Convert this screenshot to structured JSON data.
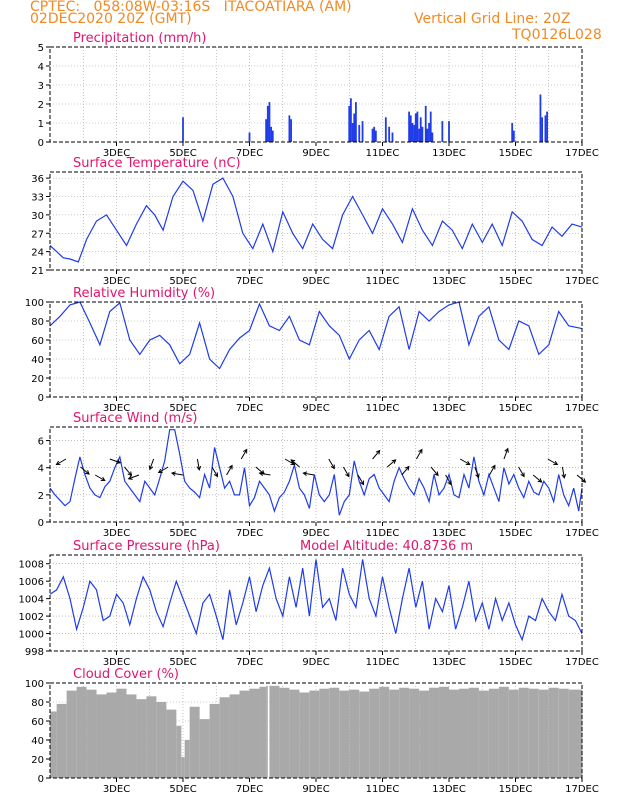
{
  "header": {
    "line1": "CPTEC:   058:08W-03:16S   ITACOATIARA (AM)",
    "line2": "02DEC2020 20Z (GMT)",
    "grid_note": "Vertical Grid Line: 20Z",
    "code": "TQ0126L028"
  },
  "x_ticks": [
    "3DEC",
    "5DEC",
    "7DEC",
    "9DEC",
    "11DEC",
    "13DEC",
    "15DEC",
    "17DEC"
  ],
  "colors": {
    "line": "#1f3ce8",
    "title": "#e0156e",
    "header": "#f08a24",
    "cloud": "#a9a9a9"
  },
  "chart_data": [
    {
      "type": "bar",
      "title": "Precipitation (mm/h)",
      "ylim": [
        0,
        5
      ],
      "yticks": [
        0,
        1,
        2,
        3,
        4,
        5
      ],
      "x": [
        5.0,
        7.0,
        7.5,
        7.55,
        7.6,
        7.65,
        7.7,
        8.2,
        8.25,
        10.0,
        10.05,
        10.1,
        10.15,
        10.2,
        10.3,
        10.4,
        10.7,
        10.75,
        10.8,
        11.1,
        11.2,
        11.3,
        11.8,
        11.85,
        11.9,
        11.95,
        12.0,
        12.05,
        12.1,
        12.15,
        12.2,
        12.3,
        12.35,
        12.4,
        12.45,
        12.5,
        12.8,
        13.0,
        14.9,
        14.95,
        15.75,
        15.8,
        15.9,
        15.95
      ],
      "values": [
        1.3,
        0.5,
        1.2,
        1.9,
        2.1,
        0.8,
        0.6,
        1.4,
        1.2,
        1.9,
        2.3,
        1.0,
        1.5,
        2.1,
        0.9,
        1.1,
        0.7,
        0.8,
        0.6,
        1.3,
        0.8,
        0.5,
        1.6,
        1.4,
        1.0,
        0.9,
        1.5,
        1.6,
        0.7,
        1.3,
        0.8,
        1.9,
        0.7,
        1.0,
        1.6,
        0.5,
        1.1,
        1.1,
        1.0,
        0.6,
        2.5,
        1.3,
        1.4,
        1.6
      ]
    },
    {
      "type": "line",
      "title": "Surface Temperature (nC)",
      "ylim": [
        21,
        37
      ],
      "yticks": [
        21,
        24,
        27,
        30,
        33,
        36
      ],
      "x": [
        1.0,
        1.2,
        1.4,
        1.6,
        1.85,
        2.1,
        2.4,
        2.7,
        3.0,
        3.3,
        3.6,
        3.9,
        4.15,
        4.4,
        4.7,
        5.0,
        5.3,
        5.6,
        5.9,
        6.2,
        6.5,
        6.8,
        7.1,
        7.4,
        7.7,
        8.0,
        8.3,
        8.6,
        8.9,
        9.2,
        9.5,
        9.8,
        10.1,
        10.4,
        10.7,
        11.0,
        11.3,
        11.6,
        11.9,
        12.2,
        12.5,
        12.8,
        13.1,
        13.4,
        13.7,
        14.0,
        14.3,
        14.6,
        14.9,
        15.2,
        15.5,
        15.8,
        16.1,
        16.4,
        16.7,
        17.0
      ],
      "values": [
        25,
        24,
        23,
        22.8,
        22.3,
        26,
        29,
        30,
        27.5,
        25,
        28.5,
        31.5,
        30,
        27.5,
        33,
        35.5,
        34,
        29,
        35,
        36,
        33,
        27,
        24.5,
        28.5,
        24,
        30.5,
        27,
        24.5,
        28.5,
        26,
        24.5,
        30,
        33,
        30,
        27,
        31,
        28.5,
        25.5,
        31,
        27.5,
        25,
        29,
        27.5,
        24.5,
        28.5,
        25.5,
        28.5,
        25,
        30.5,
        29,
        26,
        25,
        28,
        26.5,
        28.5,
        28
      ]
    },
    {
      "type": "line",
      "title": "Relative Humidity (%)",
      "ylim": [
        0,
        100
      ],
      "yticks": [
        0,
        20,
        40,
        60,
        80,
        100
      ],
      "x": [
        1.0,
        1.3,
        1.6,
        1.9,
        2.2,
        2.5,
        2.8,
        3.1,
        3.4,
        3.7,
        4.0,
        4.3,
        4.6,
        4.9,
        5.2,
        5.5,
        5.8,
        6.1,
        6.4,
        6.7,
        7.0,
        7.3,
        7.6,
        7.9,
        8.2,
        8.5,
        8.8,
        9.1,
        9.4,
        9.7,
        10.0,
        10.3,
        10.6,
        10.9,
        11.2,
        11.5,
        11.8,
        12.1,
        12.4,
        12.7,
        13.0,
        13.3,
        13.6,
        13.9,
        14.2,
        14.5,
        14.8,
        15.1,
        15.4,
        15.7,
        16.0,
        16.3,
        16.6,
        17.0
      ],
      "values": [
        75,
        85,
        97,
        100,
        78,
        55,
        90,
        99,
        60,
        45,
        60,
        65,
        55,
        35,
        45,
        78,
        40,
        30,
        50,
        62,
        70,
        98,
        75,
        70,
        85,
        60,
        55,
        90,
        75,
        65,
        40,
        60,
        70,
        50,
        85,
        95,
        50,
        90,
        80,
        90,
        97,
        100,
        55,
        85,
        95,
        60,
        50,
        80,
        75,
        45,
        55,
        90,
        75,
        72
      ]
    },
    {
      "type": "line",
      "title": "Surface Wind (m/s)",
      "ylim": [
        0,
        7
      ],
      "yticks": [
        0,
        2,
        4,
        6
      ],
      "x": [
        1.0,
        1.15,
        1.3,
        1.45,
        1.6,
        1.75,
        1.9,
        2.05,
        2.2,
        2.35,
        2.5,
        2.65,
        2.8,
        2.95,
        3.1,
        3.25,
        3.4,
        3.55,
        3.7,
        3.85,
        4.0,
        4.15,
        4.3,
        4.45,
        4.6,
        4.75,
        4.9,
        5.05,
        5.2,
        5.35,
        5.5,
        5.65,
        5.8,
        5.95,
        6.1,
        6.25,
        6.4,
        6.55,
        6.7,
        6.85,
        7.0,
        7.15,
        7.3,
        7.45,
        7.6,
        7.75,
        7.9,
        8.05,
        8.2,
        8.35,
        8.5,
        8.65,
        8.8,
        8.95,
        9.1,
        9.25,
        9.4,
        9.55,
        9.7,
        9.85,
        10.0,
        10.15,
        10.3,
        10.45,
        10.6,
        10.75,
        10.9,
        11.05,
        11.2,
        11.35,
        11.5,
        11.65,
        11.8,
        11.95,
        12.1,
        12.25,
        12.4,
        12.55,
        12.7,
        12.85,
        13.0,
        13.15,
        13.3,
        13.45,
        13.6,
        13.75,
        13.9,
        14.05,
        14.2,
        14.35,
        14.5,
        14.65,
        14.8,
        14.95,
        15.1,
        15.25,
        15.4,
        15.55,
        15.7,
        15.85,
        16.0,
        16.15,
        16.3,
        16.45,
        16.6,
        16.75,
        16.9,
        17.0
      ],
      "values": [
        2.5,
        2,
        1.6,
        1.2,
        1.5,
        3.2,
        4.8,
        3.5,
        2.5,
        2.0,
        1.8,
        2.6,
        3.0,
        4.0,
        4.8,
        3.0,
        2.5,
        2.0,
        1.5,
        3.0,
        2.5,
        2.0,
        3.2,
        4.5,
        6.8,
        6.8,
        5.0,
        3.0,
        2.5,
        2.2,
        1.8,
        3.5,
        2.5,
        5.5,
        4.0,
        2.5,
        3.0,
        2.0,
        2.0,
        4.0,
        1.2,
        1.8,
        3.0,
        2.5,
        2.0,
        0.8,
        1.8,
        2.2,
        3.0,
        4.2,
        2.5,
        2.0,
        1.0,
        3.5,
        2.0,
        1.5,
        2.0,
        3.5,
        0.5,
        1.5,
        2.0,
        4.5,
        3.0,
        2.0,
        3.2,
        3.5,
        2.5,
        2.0,
        1.5,
        3.0,
        4.0,
        3.2,
        2.5,
        2.0,
        3.2,
        2.5,
        1.5,
        3.5,
        2.0,
        2.5,
        3.5,
        2.0,
        1.8,
        3.5,
        2.5,
        4.8,
        3.0,
        2.0,
        3.5,
        2.5,
        1.5,
        4.0,
        2.8,
        3.5,
        2.5,
        1.8,
        3.0,
        2.2,
        2.0,
        3.0,
        2.5,
        1.5,
        3.5,
        2.0,
        1.2,
        2.5,
        0.8,
        2.5
      ]
    },
    {
      "type": "line",
      "title": "Surface Pressure (hPa)",
      "annotation": "Model Altitude: 40.8736 m",
      "ylim": [
        998,
        1009
      ],
      "yticks": [
        998,
        1000,
        1002,
        1004,
        1006,
        1008
      ],
      "x": [
        1.0,
        1.2,
        1.4,
        1.6,
        1.8,
        2.0,
        2.2,
        2.4,
        2.6,
        2.8,
        3.0,
        3.2,
        3.4,
        3.6,
        3.8,
        4.0,
        4.2,
        4.4,
        4.6,
        4.8,
        5.0,
        5.2,
        5.4,
        5.6,
        5.8,
        6.0,
        6.2,
        6.4,
        6.6,
        6.8,
        7.0,
        7.2,
        7.4,
        7.6,
        7.8,
        8.0,
        8.2,
        8.4,
        8.6,
        8.8,
        9.0,
        9.2,
        9.4,
        9.6,
        9.8,
        10.0,
        10.2,
        10.4,
        10.6,
        10.8,
        11.0,
        11.2,
        11.4,
        11.6,
        11.8,
        12.0,
        12.2,
        12.4,
        12.6,
        12.8,
        13.0,
        13.2,
        13.4,
        13.6,
        13.8,
        14.0,
        14.2,
        14.4,
        14.6,
        14.8,
        15.0,
        15.2,
        15.4,
        15.6,
        15.8,
        16.0,
        16.2,
        16.4,
        16.6,
        16.8,
        17.0
      ],
      "values": [
        1004.5,
        1005,
        1006.5,
        1004,
        1000.5,
        1003,
        1006,
        1005,
        1001.5,
        1002,
        1004.5,
        1003.5,
        1001,
        1004,
        1006.5,
        1005,
        1002.5,
        1000.8,
        1003.5,
        1006,
        1004,
        1002,
        1000,
        1003.5,
        1004.5,
        1002,
        999.3,
        1005,
        1001,
        1003.5,
        1006.5,
        1002.5,
        1005.5,
        1007.5,
        1004,
        1002,
        1006.5,
        1003,
        1007.5,
        1002,
        1008.5,
        1003,
        1004,
        1001.5,
        1007.5,
        1004.5,
        1003,
        1008.5,
        1004,
        1002,
        1006.5,
        1003,
        1000,
        1004,
        1007.5,
        1003,
        1006,
        1000.5,
        1004,
        1002.5,
        1005.5,
        1000.5,
        1003,
        1006,
        1001.5,
        1003.5,
        1000.5,
        1004,
        1001.5,
        1003.5,
        1001,
        999.3,
        1002,
        1001.5,
        1004,
        1002.5,
        1001.5,
        1004.5,
        1002,
        1001.5,
        1000
      ]
    },
    {
      "type": "area",
      "title": "Cloud Cover (%)",
      "ylim": [
        0,
        100
      ],
      "yticks": [
        0,
        20,
        40,
        60,
        80,
        100
      ],
      "x": [
        1.0,
        1.2,
        1.5,
        1.8,
        2.1,
        2.4,
        2.7,
        3.0,
        3.3,
        3.6,
        3.9,
        4.2,
        4.5,
        4.8,
        4.95,
        5.05,
        5.2,
        5.5,
        5.8,
        6.1,
        6.4,
        6.7,
        7.0,
        7.3,
        7.5,
        7.55,
        7.6,
        7.9,
        8.2,
        8.5,
        8.8,
        9.1,
        9.4,
        9.7,
        10.0,
        10.3,
        10.6,
        10.9,
        11.2,
        11.5,
        11.8,
        12.1,
        12.4,
        12.7,
        13.0,
        13.3,
        13.6,
        13.9,
        14.2,
        14.5,
        14.8,
        15.1,
        15.4,
        15.7,
        16.0,
        16.3,
        16.6,
        17.0
      ],
      "values": [
        70,
        78,
        92,
        96,
        93,
        88,
        90,
        94,
        88,
        83,
        86,
        80,
        72,
        55,
        22,
        40,
        75,
        62,
        78,
        85,
        88,
        92,
        94,
        96,
        97,
        0,
        97,
        95,
        93,
        90,
        92,
        94,
        95,
        92,
        93,
        91,
        94,
        96,
        93,
        95,
        94,
        92,
        95,
        96,
        93,
        94,
        95,
        92,
        94,
        96,
        93,
        95,
        94,
        93,
        95,
        94,
        93,
        92
      ]
    }
  ]
}
